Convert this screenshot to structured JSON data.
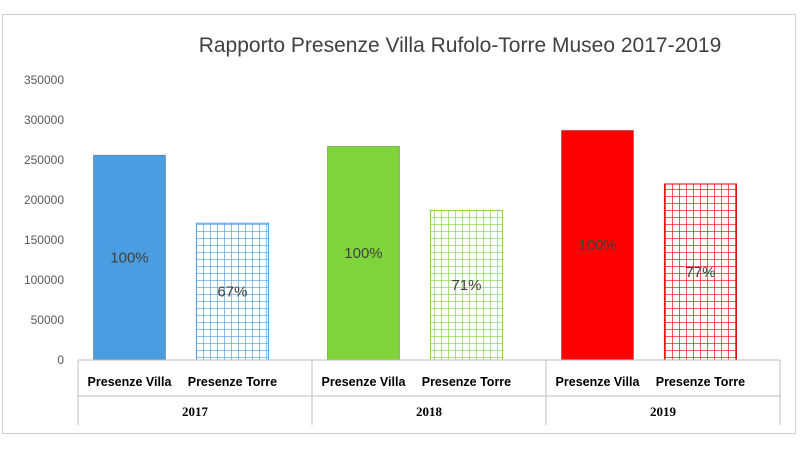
{
  "chart_data": {
    "type": "bar",
    "title": "Rapporto Presenze Villa Rufolo-Torre Museo 2017-2019",
    "ylim": [
      0,
      350000
    ],
    "yticks": [
      "0",
      "50000",
      "100000",
      "150000",
      "200000",
      "250000",
      "300000",
      "350000"
    ],
    "grid": false,
    "legend": "none",
    "groups": [
      {
        "year": "2017",
        "bars": [
          {
            "category": "Presenze Villa",
            "value": 256000,
            "label": "100%",
            "color": "#4a9de0",
            "pattern": "solid"
          },
          {
            "category": "Presenze Torre",
            "value": 171000,
            "label": "67%",
            "color": "#4a9de0",
            "pattern": "grid"
          }
        ]
      },
      {
        "year": "2018",
        "bars": [
          {
            "category": "Presenze Villa",
            "value": 267000,
            "label": "100%",
            "color": "#7ed43a",
            "pattern": "solid"
          },
          {
            "category": "Presenze Torre",
            "value": 187000,
            "label": "71%",
            "color": "#7ed43a",
            "pattern": "grid"
          }
        ]
      },
      {
        "year": "2019",
        "bars": [
          {
            "category": "Presenze Villa",
            "value": 287000,
            "label": "100%",
            "color": "#ff0000",
            "pattern": "solid"
          },
          {
            "category": "Presenze Torre",
            "value": 220000,
            "label": "77%",
            "color": "#e60000",
            "pattern": "grid"
          }
        ]
      }
    ]
  }
}
